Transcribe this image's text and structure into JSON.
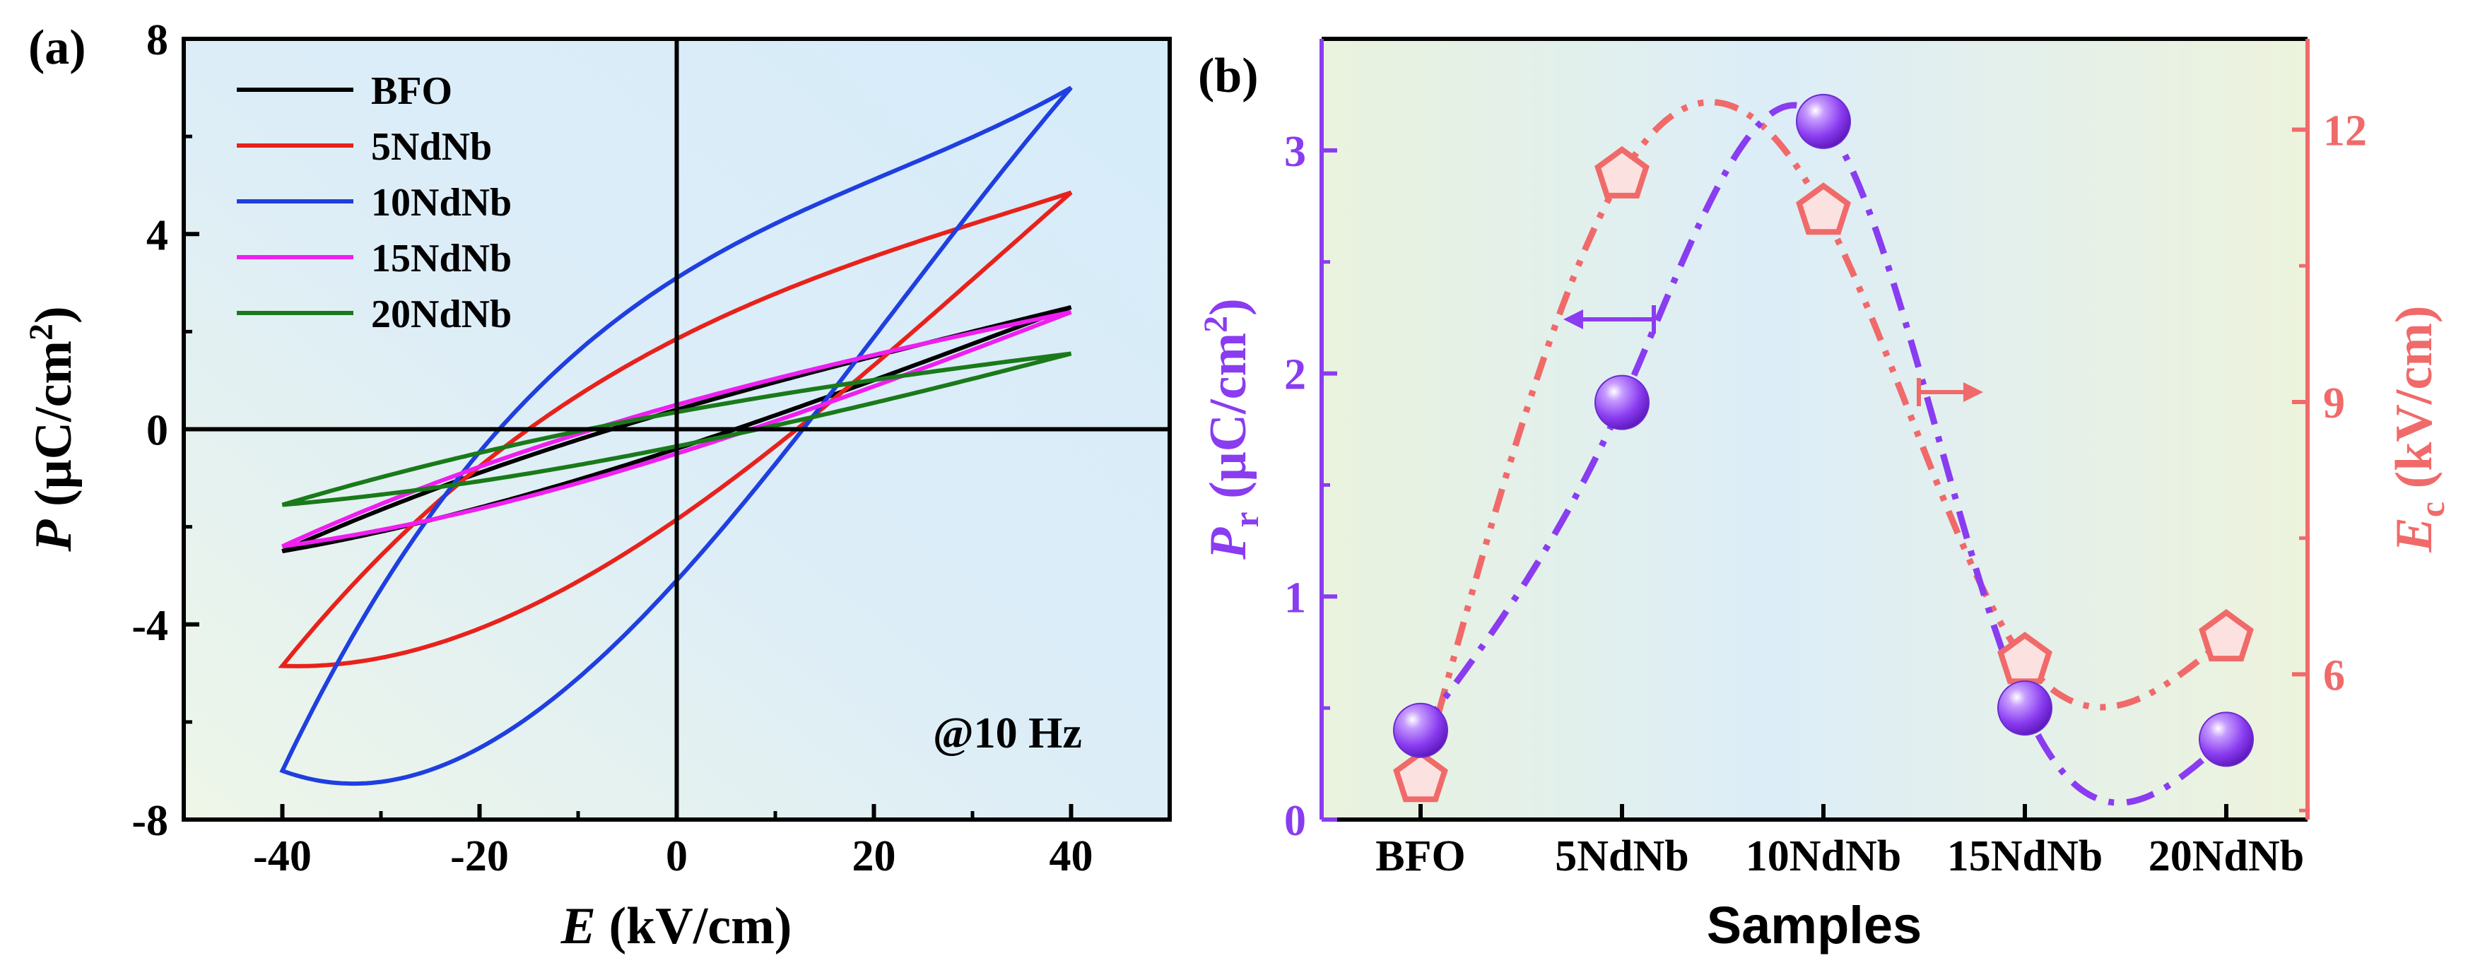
{
  "panel_a": {
    "label": "(a)",
    "annotation": "@10 Hz",
    "xlabel_var": "E",
    "xlabel_unit": " (kV/cm)",
    "ylabel_var": "P",
    "ylabel_unit_pre": " (μC/cm",
    "ylabel_unit_sup": "2",
    "ylabel_unit_post": ")"
  },
  "panel_b": {
    "label": "(b)",
    "xlabel": "Samples",
    "ylabel_left_var": "P",
    "ylabel_left_sub": "r",
    "ylabel_left_unit": " (μC/cm",
    "ylabel_left_sup": "2",
    "ylabel_left_post": ")",
    "ylabel_right_var": "E",
    "ylabel_right_sub": "c",
    "ylabel_right_unit": " (kV/cm)"
  },
  "colors": {
    "BFO": "#000000",
    "5NdNb": "#e8221b",
    "10NdNb": "#1f3fe0",
    "15NdNb": "#ee1ff0",
    "20NdNb": "#1a7a1a",
    "pr": "#8a3cf0",
    "ec": "#f06a6a"
  },
  "chart_data": [
    {
      "type": "line",
      "title": "",
      "xlabel": "E (kV/cm)",
      "ylabel": "P (μC/cm2)",
      "xlim": [
        -50,
        50
      ],
      "ylim": [
        -8,
        8
      ],
      "xticks": [
        -40,
        -20,
        0,
        20,
        40
      ],
      "yticks": [
        -8,
        -4,
        0,
        4,
        8
      ],
      "legend_position": "top-left",
      "series": [
        {
          "name": "BFO",
          "Emax": 40,
          "Pmax": 2.5,
          "Pr": 0.4,
          "Ec": 5,
          "bulge": 0.1
        },
        {
          "name": "5NdNb",
          "Emax": 40,
          "Pmax": 4.85,
          "Pr": 1.85,
          "Ec": 11,
          "bulge": 0.25
        },
        {
          "name": "10NdNb",
          "Emax": 40,
          "Pmax": 7.0,
          "Pr": 3.1,
          "Ec": 11.5,
          "bulge": 0.45
        },
        {
          "name": "15NdNb",
          "Emax": 40,
          "Pmax": 2.4,
          "Pr": 0.5,
          "Ec": 6,
          "bulge": 0.1
        },
        {
          "name": "20NdNb",
          "Emax": 40,
          "Pmax": 1.55,
          "Pr": 0.35,
          "Ec": 6.5,
          "bulge": 0.08
        }
      ]
    },
    {
      "type": "scatter",
      "title": "",
      "xlabel": "Samples",
      "categories": [
        "BFO",
        "5NdNb",
        "10NdNb",
        "15NdNb",
        "20NdNb"
      ],
      "series": [
        {
          "name": "Pr (μC/cm2)",
          "axis": "left",
          "marker": "sphere",
          "values": [
            0.4,
            1.87,
            3.13,
            0.5,
            0.36
          ]
        },
        {
          "name": "Ec (kV/cm)",
          "axis": "right",
          "marker": "pentagon",
          "values": [
            4.85,
            11.5,
            11.1,
            6.15,
            6.4
          ]
        }
      ],
      "ylim_left": [
        0,
        3.5
      ],
      "yticks_left": [
        0,
        1,
        2,
        3
      ],
      "ylim_right": [
        4.4,
        13
      ],
      "yticks_right": [
        6,
        9,
        12
      ]
    }
  ]
}
